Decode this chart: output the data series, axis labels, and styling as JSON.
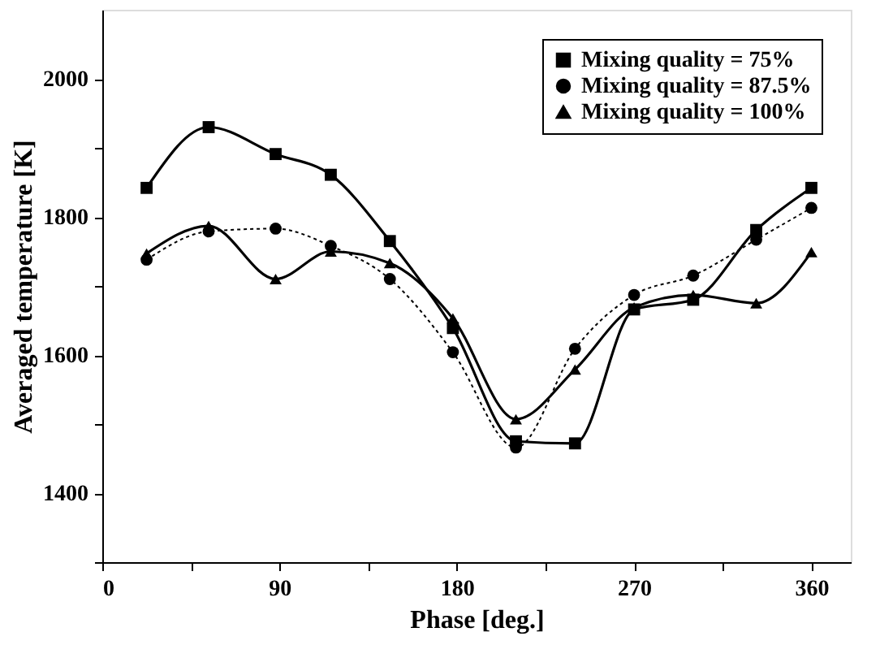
{
  "chart_data": {
    "type": "line",
    "xlabel": "Phase [deg.]",
    "ylabel": "Averaged temperature [K]",
    "x": [
      22.5,
      54,
      88,
      116,
      146,
      178,
      210,
      240,
      270,
      300,
      332,
      360
    ],
    "series": [
      {
        "name": "Mixing quality = 75%",
        "color": "#000000",
        "marker": "square",
        "line_style": "solid",
        "values": [
          1842,
          1930,
          1891,
          1861,
          1765,
          1639,
          1475,
          1472,
          1666,
          1680,
          1781,
          1842
        ]
      },
      {
        "name": "Mixing quality = 87.5%",
        "color": "#000000",
        "marker": "circle",
        "line_style": "dotted",
        "values": [
          1738,
          1779,
          1783,
          1758,
          1710,
          1604,
          1466,
          1609,
          1687,
          1715,
          1767,
          1813
        ]
      },
      {
        "name": "Mixing quality = 100%",
        "color": "#000000",
        "marker": "triangle",
        "line_style": "solid",
        "values": [
          1747,
          1787,
          1710,
          1750,
          1733,
          1653,
          1507,
          1579,
          1669,
          1687,
          1675,
          1749
        ]
      }
    ],
    "xlim": [
      0,
      380
    ],
    "ylim": [
      1300,
      2100
    ],
    "xticks": [
      0,
      {
        "value": 45,
        "label": null
      },
      90,
      {
        "value": 135,
        "label": null
      },
      180,
      {
        "value": 225,
        "label": null
      },
      270,
      {
        "value": 315,
        "label": null
      },
      360
    ],
    "yticks": [
      {
        "value": 1300,
        "label": null
      },
      1400,
      {
        "value": 1500,
        "label": null
      },
      1600,
      {
        "value": 1700,
        "label": null
      },
      1800,
      {
        "value": 1900,
        "label": null
      },
      2000
    ],
    "grid": false,
    "legend": "top right"
  }
}
